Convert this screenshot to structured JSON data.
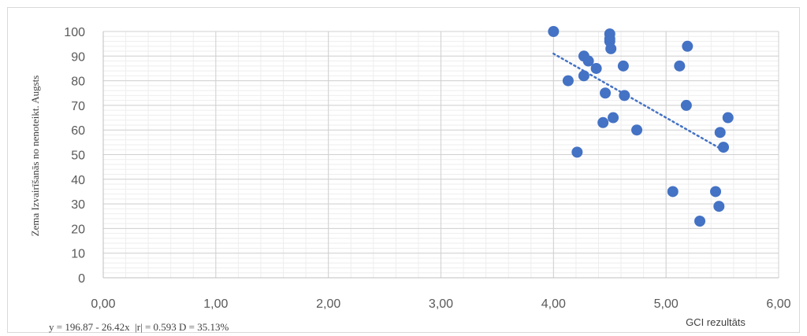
{
  "chart_data": {
    "type": "scatter",
    "title": "",
    "xlabel": "GCI rezultāts",
    "ylabel": "Zema  Izvairīšanās no nenoteikt.  Augsts",
    "xlim": [
      0,
      6
    ],
    "ylim": [
      0,
      100
    ],
    "x_ticks": [
      "0,00",
      "1,00",
      "2,00",
      "3,00",
      "4,00",
      "5,00",
      "6,00"
    ],
    "y_ticks": [
      "0",
      "10",
      "20",
      "30",
      "40",
      "50",
      "60",
      "70",
      "80",
      "90",
      "100"
    ],
    "grid": true,
    "legend": "none",
    "marker_color": "#4472c4",
    "trendline": {
      "style": "dotted",
      "x_range": [
        4.0,
        5.5
      ],
      "y_start": 91,
      "y_end": 52
    },
    "equation_text": "y = 196.87 - 26.42x  |r| = 0.593 D = 35.13%",
    "points": [
      {
        "x": 4.0,
        "y": 100
      },
      {
        "x": 4.5,
        "y": 99
      },
      {
        "x": 4.5,
        "y": 97
      },
      {
        "x": 4.5,
        "y": 96
      },
      {
        "x": 4.51,
        "y": 93
      },
      {
        "x": 4.27,
        "y": 90
      },
      {
        "x": 4.31,
        "y": 88
      },
      {
        "x": 4.38,
        "y": 85
      },
      {
        "x": 4.62,
        "y": 86
      },
      {
        "x": 4.27,
        "y": 82
      },
      {
        "x": 4.13,
        "y": 80
      },
      {
        "x": 4.46,
        "y": 75
      },
      {
        "x": 4.63,
        "y": 74
      },
      {
        "x": 4.44,
        "y": 63
      },
      {
        "x": 4.53,
        "y": 65
      },
      {
        "x": 4.74,
        "y": 60
      },
      {
        "x": 4.21,
        "y": 51
      },
      {
        "x": 5.19,
        "y": 94
      },
      {
        "x": 5.12,
        "y": 86
      },
      {
        "x": 5.18,
        "y": 70
      },
      {
        "x": 5.55,
        "y": 65
      },
      {
        "x": 5.48,
        "y": 59
      },
      {
        "x": 5.51,
        "y": 53
      },
      {
        "x": 5.06,
        "y": 35
      },
      {
        "x": 5.44,
        "y": 35
      },
      {
        "x": 5.47,
        "y": 29
      },
      {
        "x": 5.3,
        "y": 23
      }
    ]
  }
}
